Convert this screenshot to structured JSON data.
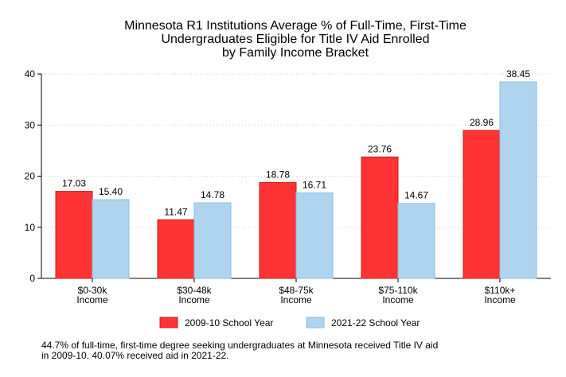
{
  "chart_data": {
    "type": "bar",
    "title": [
      "Minnesota R1 Institutions Average % of Full-Time, First-Time",
      "Undergraduates Eligible for Title IV Aid Enrolled",
      "by Family Income Bracket"
    ],
    "categories": [
      [
        "$0-30k",
        "Income"
      ],
      [
        "$30-48k",
        "Income"
      ],
      [
        "$48-75k",
        "Income"
      ],
      [
        "$75-110k",
        "Income"
      ],
      [
        "$110k+",
        "Income"
      ]
    ],
    "series": [
      {
        "name": "2009-10 School Year",
        "values": [
          17.03,
          11.47,
          18.78,
          23.76,
          28.96
        ],
        "labels": [
          "17.03",
          "11.47",
          "18.78",
          "23.76",
          "28.96"
        ],
        "color": "#ff3333",
        "stroke": "#c41e1e"
      },
      {
        "name": "2021-22 School Year",
        "values": [
          15.4,
          14.78,
          16.71,
          14.67,
          38.45
        ],
        "labels": [
          "15.40",
          "14.78",
          "16.71",
          "14.67",
          "38.45"
        ],
        "color": "#aed4f0",
        "stroke": "#8fbde0"
      }
    ],
    "ylim": [
      0,
      40
    ],
    "yticks": [
      0,
      10,
      20,
      30,
      40
    ],
    "xlabel": "",
    "ylabel": "",
    "grid": true,
    "legend_position": "bottom"
  },
  "footnote": "44.7% of full-time, first-time degree seeking undergraduates at Minnesota received Title IV aid\nin 2009-10. 40.07% received aid in 2021-22."
}
